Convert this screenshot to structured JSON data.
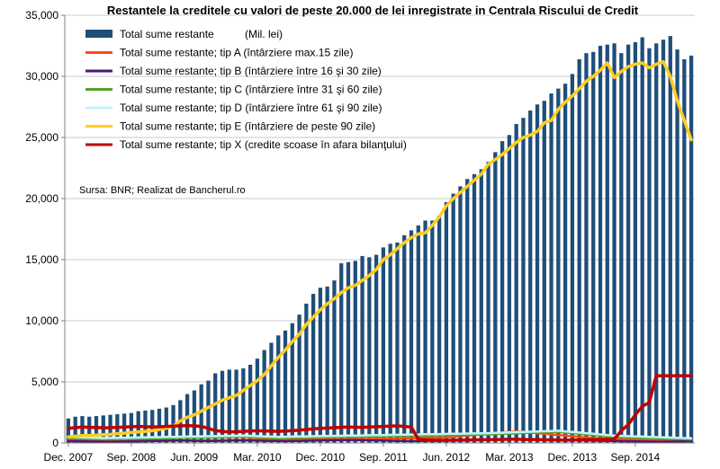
{
  "chart_data": {
    "type": "bar",
    "title": "Restantele la creditele cu valori de peste 20.000 de lei inregistrate in Centrala Riscului de Credit",
    "unit_note": "(Mil. lei)",
    "source": "Sursa: BNR; Realizat de Bancherul.ro",
    "xlabel": "",
    "ylabel": "",
    "ylim": [
      0,
      35000
    ],
    "y_ticks": [
      {
        "value": 0,
        "label": "0"
      },
      {
        "value": 5000,
        "label": "5,000"
      },
      {
        "value": 10000,
        "label": "10,000"
      },
      {
        "value": 15000,
        "label": "15,000"
      },
      {
        "value": 20000,
        "label": "20,000"
      },
      {
        "value": 25000,
        "label": "25,000"
      },
      {
        "value": 30000,
        "label": "30,000"
      },
      {
        "value": 35000,
        "label": "35,000"
      }
    ],
    "x_ticks": [
      {
        "index": 0,
        "label": "Dec. 2007"
      },
      {
        "index": 9,
        "label": "Sep. 2008"
      },
      {
        "index": 18,
        "label": "Jun. 2009"
      },
      {
        "index": 27,
        "label": "Mar. 2010"
      },
      {
        "index": 36,
        "label": "Dec. 2010"
      },
      {
        "index": 45,
        "label": "Sep. 2011"
      },
      {
        "index": 54,
        "label": "Jun. 2012"
      },
      {
        "index": 63,
        "label": "Mar. 2013"
      },
      {
        "index": 72,
        "label": "Dec. 2013"
      },
      {
        "index": 81,
        "label": "Sep. 2014"
      }
    ],
    "categories_note": "monthly, Dec. 2007 - Sep. 2014",
    "grid": true,
    "legend_position": "top-left",
    "series": [
      {
        "name": "Total sume restante",
        "kind": "bar",
        "color": "#1f4e79",
        "values": [
          2000,
          2150,
          2200,
          2150,
          2200,
          2250,
          2300,
          2350,
          2400,
          2450,
          2600,
          2650,
          2700,
          2800,
          2900,
          3100,
          3500,
          4000,
          4300,
          4800,
          5100,
          5700,
          5900,
          6000,
          6000,
          6100,
          6400,
          6900,
          7600,
          8200,
          8800,
          9200,
          9800,
          10500,
          11400,
          12200,
          12700,
          12800,
          13300,
          14700,
          14800,
          14900,
          15300,
          15200,
          15400,
          16000,
          16300,
          16400,
          17000,
          17400,
          17800,
          18200,
          18200,
          18600,
          19700,
          20400,
          21000,
          21600,
          22000,
          22400,
          23000,
          23800,
          24700,
          25200,
          26100,
          26600,
          27200,
          27700,
          28000,
          28600,
          29000,
          29400,
          30200,
          31400,
          31900,
          32000,
          32500,
          32600,
          32700,
          31900,
          32600,
          32800,
          33200,
          32300,
          32700,
          33000,
          33300,
          32200,
          31400,
          31700
        ]
      },
      {
        "name": "Total sume restante; tip A (întârziere max.15 zile)",
        "kind": "line",
        "color": "#ff4a1a",
        "values": [
          300,
          280,
          260,
          250,
          240,
          230,
          220,
          230,
          240,
          250,
          260,
          250,
          240,
          230,
          220,
          210,
          200,
          210,
          200,
          190,
          200,
          210,
          220,
          230,
          240,
          250,
          260,
          270,
          280,
          290,
          300,
          310,
          320,
          330,
          340,
          330,
          320,
          310,
          300,
          290,
          300,
          310,
          320,
          330,
          340,
          350,
          360,
          370,
          380,
          390,
          400,
          420,
          430,
          440,
          450,
          500,
          550,
          600,
          650,
          700,
          750,
          800,
          850,
          900,
          950,
          900,
          850,
          800,
          750,
          700,
          650,
          600,
          550,
          500,
          450,
          400,
          380,
          360,
          340,
          320,
          300,
          280,
          260,
          250,
          240,
          230,
          220,
          210,
          200,
          190
        ]
      },
      {
        "name": "Total sume restante; tip B (întârziere între 16 şi 30 zile)",
        "kind": "line",
        "color": "#4b1a6e",
        "values": [
          150,
          140,
          130,
          120,
          110,
          100,
          100,
          110,
          120,
          130,
          140,
          150,
          160,
          170,
          180,
          190,
          200,
          190,
          180,
          170,
          160,
          170,
          180,
          190,
          200,
          210,
          200,
          190,
          180,
          170,
          160,
          150,
          160,
          170,
          180,
          190,
          200,
          210,
          220,
          230,
          240,
          230,
          220,
          210,
          200,
          190,
          180,
          170,
          160,
          150,
          160,
          170,
          180,
          190,
          200,
          210,
          220,
          230,
          240,
          250,
          260,
          270,
          280,
          290,
          300,
          290,
          280,
          270,
          260,
          250,
          240,
          230,
          220,
          210,
          200,
          190,
          180,
          170,
          160,
          150,
          140,
          130,
          120,
          110,
          100,
          100,
          110,
          120,
          130,
          140
        ]
      },
      {
        "name": "Total sume restante; tip C (întârziere între 31 şi 60 zile)",
        "kind": "line",
        "color": "#5aa02c",
        "values": [
          400,
          380,
          360,
          340,
          320,
          300,
          310,
          320,
          330,
          340,
          350,
          360,
          370,
          380,
          390,
          400,
          410,
          420,
          430,
          440,
          450,
          460,
          470,
          480,
          490,
          500,
          480,
          460,
          440,
          420,
          400,
          410,
          420,
          430,
          440,
          450,
          460,
          470,
          480,
          490,
          500,
          510,
          520,
          530,
          540,
          550,
          560,
          570,
          580,
          590,
          600,
          610,
          620,
          630,
          640,
          650,
          660,
          670,
          680,
          690,
          700,
          720,
          740,
          760,
          780,
          800,
          820,
          840,
          860,
          880,
          900,
          850,
          800,
          750,
          700,
          650,
          600,
          550,
          500,
          480,
          460,
          440,
          420,
          400,
          380,
          360,
          340,
          320,
          300,
          280
        ]
      },
      {
        "name": "Total sume restante; tip D (întârziere între 61 şi 90 zile)",
        "kind": "line",
        "color": "#bff5f7",
        "values": [
          500,
          480,
          460,
          440,
          420,
          400,
          410,
          420,
          430,
          440,
          450,
          460,
          470,
          480,
          490,
          500,
          510,
          520,
          530,
          540,
          550,
          560,
          570,
          580,
          590,
          600,
          580,
          560,
          540,
          520,
          500,
          510,
          520,
          530,
          540,
          550,
          560,
          570,
          580,
          590,
          600,
          610,
          620,
          630,
          640,
          650,
          660,
          670,
          680,
          690,
          700,
          710,
          720,
          730,
          740,
          750,
          760,
          770,
          780,
          790,
          800,
          820,
          840,
          860,
          880,
          900,
          920,
          940,
          960,
          980,
          1000,
          950,
          900,
          850,
          800,
          750,
          700,
          650,
          600,
          580,
          560,
          540,
          520,
          500,
          480,
          460,
          440,
          420,
          400,
          380
        ]
      },
      {
        "name": "Total sume restante; tip E (întârziere de peste 90 zile)",
        "kind": "line",
        "color": "#ffcc22",
        "values": [
          500,
          550,
          600,
          620,
          650,
          680,
          700,
          750,
          800,
          850,
          900,
          950,
          1000,
          1100,
          1200,
          1400,
          1800,
          2100,
          2300,
          2600,
          2900,
          3200,
          3500,
          3700,
          3900,
          4300,
          4700,
          5100,
          5600,
          6300,
          7000,
          7600,
          8300,
          8900,
          9700,
          10300,
          10900,
          11400,
          11800,
          12300,
          12700,
          12900,
          13300,
          13700,
          14200,
          15000,
          15400,
          15900,
          16400,
          16800,
          17100,
          17200,
          17800,
          18500,
          19400,
          20000,
          20500,
          21000,
          21500,
          22000,
          22800,
          23200,
          23600,
          24100,
          24600,
          25000,
          25200,
          25500,
          26200,
          26400,
          27300,
          27900,
          28400,
          29000,
          29600,
          30000,
          30500,
          31100,
          29900,
          30400,
          30800,
          31000,
          31100,
          30700,
          31000,
          31200,
          30000,
          28000,
          26400,
          24800
        ]
      },
      {
        "name": "Total sume restante; tip X (credite scoase în afara bilanţului)",
        "kind": "line",
        "color": "#c00000",
        "values": [
          1200,
          1250,
          1300,
          1280,
          1260,
          1240,
          1250,
          1270,
          1300,
          1320,
          1350,
          1330,
          1300,
          1320,
          1350,
          1380,
          1400,
          1420,
          1400,
          1350,
          1200,
          1000,
          950,
          900,
          920,
          950,
          980,
          1000,
          980,
          960,
          950,
          980,
          1000,
          1050,
          1100,
          1150,
          1200,
          1220,
          1250,
          1280,
          1300,
          1290,
          1280,
          1300,
          1320,
          1350,
          1380,
          1400,
          1350,
          1300,
          300,
          250,
          220,
          200,
          210,
          220,
          230,
          240,
          250,
          260,
          270,
          280,
          290,
          300,
          300,
          290,
          280,
          270,
          260,
          250,
          240,
          230,
          240,
          250,
          260,
          270,
          280,
          290,
          300,
          1000,
          1500,
          2300,
          3000,
          3300,
          5500,
          5500,
          5500,
          5500,
          5500,
          5500
        ]
      }
    ]
  }
}
